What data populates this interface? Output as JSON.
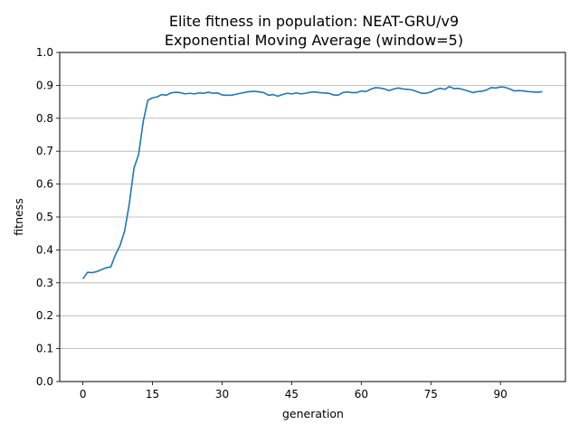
{
  "chart_data": {
    "type": "line",
    "title": "Elite fitness in population: NEAT-GRU/v9",
    "subtitle": "Exponential Moving Average (window=5)",
    "xlabel": "generation",
    "ylabel": "fitness",
    "xlim": [
      -5,
      104
    ],
    "ylim": [
      0.0,
      1.0
    ],
    "xticks": [
      0,
      15,
      30,
      45,
      60,
      75,
      90
    ],
    "yticks": [
      0.0,
      0.1,
      0.2,
      0.3,
      0.4,
      0.5,
      0.6,
      0.7,
      0.8,
      0.9,
      1.0
    ],
    "grid": "y-major",
    "line_color": "#1f77b4",
    "x": [
      0,
      1,
      2,
      3,
      4,
      5,
      6,
      7,
      8,
      9,
      10,
      11,
      12,
      13,
      14,
      15,
      16,
      17,
      18,
      19,
      20,
      21,
      22,
      23,
      24,
      25,
      26,
      27,
      28,
      29,
      30,
      31,
      32,
      33,
      34,
      35,
      36,
      37,
      38,
      39,
      40,
      41,
      42,
      43,
      44,
      45,
      46,
      47,
      48,
      49,
      50,
      51,
      52,
      53,
      54,
      55,
      56,
      57,
      58,
      59,
      60,
      61,
      62,
      63,
      64,
      65,
      66,
      67,
      68,
      69,
      70,
      71,
      72,
      73,
      74,
      75,
      76,
      77,
      78,
      79,
      80,
      81,
      82,
      83,
      84,
      85,
      86,
      87,
      88,
      89,
      90,
      91,
      92,
      93,
      94,
      95,
      96,
      97,
      98,
      99
    ],
    "y": [
      0.312,
      0.332,
      0.331,
      0.334,
      0.34,
      0.346,
      0.348,
      0.385,
      0.413,
      0.458,
      0.54,
      0.648,
      0.69,
      0.79,
      0.855,
      0.862,
      0.865,
      0.872,
      0.87,
      0.877,
      0.879,
      0.878,
      0.874,
      0.876,
      0.874,
      0.877,
      0.876,
      0.879,
      0.876,
      0.877,
      0.871,
      0.87,
      0.87,
      0.873,
      0.876,
      0.879,
      0.881,
      0.882,
      0.88,
      0.878,
      0.87,
      0.872,
      0.867,
      0.872,
      0.876,
      0.874,
      0.877,
      0.874,
      0.876,
      0.879,
      0.88,
      0.878,
      0.877,
      0.876,
      0.871,
      0.87,
      0.878,
      0.88,
      0.878,
      0.878,
      0.883,
      0.881,
      0.888,
      0.893,
      0.892,
      0.889,
      0.884,
      0.889,
      0.892,
      0.889,
      0.888,
      0.886,
      0.881,
      0.876,
      0.876,
      0.88,
      0.887,
      0.891,
      0.888,
      0.896,
      0.89,
      0.891,
      0.887,
      0.883,
      0.878,
      0.881,
      0.882,
      0.886,
      0.893,
      0.892,
      0.895,
      0.894,
      0.889,
      0.883,
      0.884,
      0.883,
      0.881,
      0.88,
      0.879,
      0.881
    ]
  }
}
